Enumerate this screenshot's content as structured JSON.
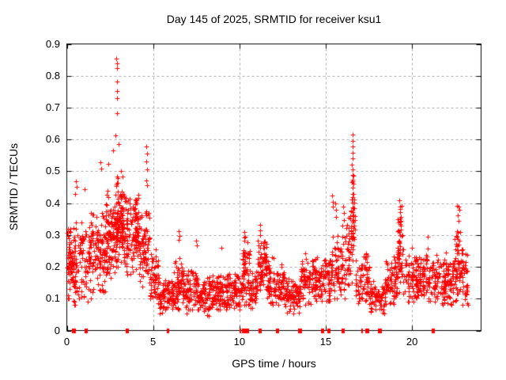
{
  "window": {
    "background": "#ffffff"
  },
  "colors": {
    "marker": "#ff0000",
    "grid": "#a8a8a8",
    "axis": "#000000",
    "text": "#000000"
  },
  "chart_data": {
    "type": "scatter",
    "title": "Day 145 of 2025, SRMTID for receiver ksu1",
    "xlabel": "GPS time / hours",
    "ylabel": "SRMTID / TECUs",
    "xlim": [
      0,
      24
    ],
    "ylim": [
      0,
      0.9
    ],
    "xticks": [
      "0",
      "5",
      "10",
      "15",
      "20"
    ],
    "xtick_values": [
      0,
      5,
      10,
      15,
      20
    ],
    "yticks": [
      "0",
      "0.1",
      "0.2",
      "0.3",
      "0.4",
      "0.5",
      "0.6",
      "0.7",
      "0.8",
      "0.9"
    ],
    "ytick_values": [
      0,
      0.1,
      0.2,
      0.3,
      0.4,
      0.5,
      0.6,
      0.7,
      0.8,
      0.9
    ],
    "grid": true,
    "legend": "none",
    "marker": {
      "glyph": "plus",
      "color": "#ff0000",
      "size": 7
    },
    "seed": 145,
    "band_segments": [
      [
        0.02,
        0.25,
        45,
        0.22,
        0.14,
        0.1,
        0.32
      ],
      [
        0.25,
        0.65,
        55,
        0.2,
        0.16,
        0.08,
        0.44
      ],
      [
        0.65,
        1.3,
        60,
        0.2,
        0.15,
        0.09,
        0.38
      ],
      [
        1.3,
        2.25,
        120,
        0.25,
        0.16,
        0.1,
        0.44
      ],
      [
        2.25,
        2.75,
        85,
        0.3,
        0.15,
        0.14,
        0.5
      ],
      [
        2.75,
        3.35,
        130,
        0.35,
        0.17,
        0.16,
        0.58
      ],
      [
        3.35,
        4.2,
        120,
        0.31,
        0.16,
        0.15,
        0.52
      ],
      [
        4.2,
        4.8,
        75,
        0.26,
        0.13,
        0.13,
        0.44
      ],
      [
        4.8,
        5.3,
        55,
        0.17,
        0.1,
        0.07,
        0.33
      ],
      [
        5.3,
        6.2,
        85,
        0.11,
        0.06,
        0.05,
        0.19
      ],
      [
        6.2,
        6.7,
        55,
        0.14,
        0.09,
        0.06,
        0.3
      ],
      [
        6.7,
        7.6,
        90,
        0.13,
        0.08,
        0.05,
        0.27
      ],
      [
        7.6,
        8.6,
        95,
        0.11,
        0.07,
        0.04,
        0.21
      ],
      [
        8.6,
        9.6,
        95,
        0.12,
        0.07,
        0.05,
        0.23
      ],
      [
        9.6,
        10.15,
        50,
        0.12,
        0.07,
        0.05,
        0.21
      ],
      [
        10.15,
        10.6,
        60,
        0.18,
        0.13,
        0.08,
        0.31
      ],
      [
        10.6,
        11.05,
        45,
        0.13,
        0.08,
        0.07,
        0.22
      ],
      [
        11.05,
        11.6,
        70,
        0.2,
        0.12,
        0.1,
        0.33
      ],
      [
        11.6,
        12.6,
        95,
        0.15,
        0.09,
        0.08,
        0.26
      ],
      [
        12.6,
        13.55,
        90,
        0.11,
        0.07,
        0.04,
        0.19
      ],
      [
        13.55,
        14.6,
        100,
        0.16,
        0.09,
        0.08,
        0.28
      ],
      [
        14.6,
        15.35,
        70,
        0.16,
        0.09,
        0.09,
        0.28
      ],
      [
        15.35,
        16.2,
        75,
        0.19,
        0.12,
        0.1,
        0.34
      ],
      [
        16.2,
        16.45,
        30,
        0.25,
        0.13,
        0.13,
        0.4
      ],
      [
        16.45,
        16.7,
        45,
        0.33,
        0.2,
        0.15,
        0.52
      ],
      [
        16.7,
        17.55,
        75,
        0.16,
        0.1,
        0.07,
        0.3
      ],
      [
        17.55,
        18.45,
        75,
        0.1,
        0.06,
        0.03,
        0.17
      ],
      [
        18.45,
        19.15,
        70,
        0.15,
        0.09,
        0.07,
        0.25
      ],
      [
        19.15,
        19.45,
        45,
        0.25,
        0.15,
        0.12,
        0.4
      ],
      [
        19.45,
        20.25,
        65,
        0.17,
        0.1,
        0.09,
        0.29
      ],
      [
        20.25,
        21.6,
        130,
        0.17,
        0.09,
        0.09,
        0.28
      ],
      [
        21.6,
        22.45,
        90,
        0.16,
        0.09,
        0.08,
        0.26
      ],
      [
        22.45,
        22.9,
        55,
        0.2,
        0.14,
        0.07,
        0.34
      ],
      [
        22.9,
        23.25,
        35,
        0.17,
        0.11,
        0.08,
        0.28
      ]
    ],
    "outliers": [
      [
        2.88,
        0.853
      ],
      [
        2.9,
        0.84
      ],
      [
        2.89,
        0.824
      ],
      [
        2.9,
        0.782
      ],
      [
        2.91,
        0.752
      ],
      [
        2.89,
        0.73
      ],
      [
        2.92,
        0.682
      ],
      [
        2.8,
        0.612
      ],
      [
        3.02,
        0.585
      ],
      [
        2.7,
        0.565
      ],
      [
        0.52,
        0.468
      ],
      [
        0.55,
        0.452
      ],
      [
        0.5,
        0.43
      ],
      [
        1.02,
        0.445
      ],
      [
        1.95,
        0.528
      ],
      [
        2.0,
        0.508
      ],
      [
        2.42,
        0.523
      ],
      [
        4.62,
        0.578
      ],
      [
        4.63,
        0.555
      ],
      [
        4.61,
        0.532
      ],
      [
        4.64,
        0.505
      ],
      [
        4.62,
        0.472
      ],
      [
        4.65,
        0.455
      ],
      [
        6.5,
        0.312
      ],
      [
        6.52,
        0.298
      ],
      [
        6.48,
        0.285
      ],
      [
        7.5,
        0.282
      ],
      [
        7.52,
        0.268
      ],
      [
        8.95,
        0.26
      ],
      [
        10.3,
        0.31
      ],
      [
        10.32,
        0.295
      ],
      [
        10.28,
        0.282
      ],
      [
        11.2,
        0.332
      ],
      [
        11.22,
        0.315
      ],
      [
        11.18,
        0.3
      ],
      [
        15.38,
        0.425
      ],
      [
        15.4,
        0.405
      ],
      [
        15.42,
        0.388
      ],
      [
        15.56,
        0.398
      ],
      [
        15.58,
        0.378
      ],
      [
        15.6,
        0.358
      ],
      [
        16.02,
        0.388
      ],
      [
        16.04,
        0.368
      ],
      [
        16.06,
        0.348
      ],
      [
        15.95,
        0.33
      ],
      [
        16.55,
        0.615
      ],
      [
        16.56,
        0.596
      ],
      [
        16.54,
        0.578
      ],
      [
        16.55,
        0.558
      ],
      [
        16.57,
        0.54
      ],
      [
        16.53,
        0.522
      ],
      [
        16.55,
        0.505
      ],
      [
        16.56,
        0.488
      ],
      [
        16.54,
        0.468
      ],
      [
        16.55,
        0.448
      ],
      [
        16.57,
        0.43
      ],
      [
        16.52,
        0.412
      ],
      [
        19.28,
        0.408
      ],
      [
        19.3,
        0.39
      ],
      [
        19.32,
        0.372
      ],
      [
        19.29,
        0.352
      ],
      [
        19.31,
        0.335
      ],
      [
        19.33,
        0.318
      ],
      [
        19.3,
        0.3
      ],
      [
        19.28,
        0.282
      ],
      [
        19.32,
        0.265
      ],
      [
        20.9,
        0.295
      ],
      [
        22.62,
        0.392
      ],
      [
        22.68,
        0.388
      ],
      [
        22.74,
        0.378
      ],
      [
        22.65,
        0.362
      ],
      [
        22.7,
        0.345
      ],
      [
        22.6,
        0.312
      ],
      [
        22.78,
        0.31
      ],
      [
        22.72,
        0.282
      ],
      [
        22.66,
        0.252
      ]
    ],
    "zero_markers": [
      [
        0.41,
        5
      ],
      [
        1.08,
        2
      ],
      [
        1.16,
        2
      ],
      [
        3.45,
        2
      ],
      [
        3.53,
        2
      ],
      [
        5.87,
        3
      ],
      [
        10.05,
        2
      ],
      [
        10.28,
        5
      ],
      [
        10.42,
        5
      ],
      [
        11.16,
        2
      ],
      [
        11.24,
        2
      ],
      [
        12.16,
        2
      ],
      [
        12.24,
        2
      ],
      [
        13.5,
        5
      ],
      [
        14.8,
        4
      ],
      [
        15.15,
        2
      ],
      [
        15.23,
        2
      ],
      [
        15.98,
        2
      ],
      [
        16.06,
        2
      ],
      [
        17.1,
        2
      ],
      [
        17.42,
        5
      ],
      [
        18.15,
        5
      ],
      [
        21.18,
        2
      ],
      [
        21.26,
        2
      ]
    ]
  }
}
